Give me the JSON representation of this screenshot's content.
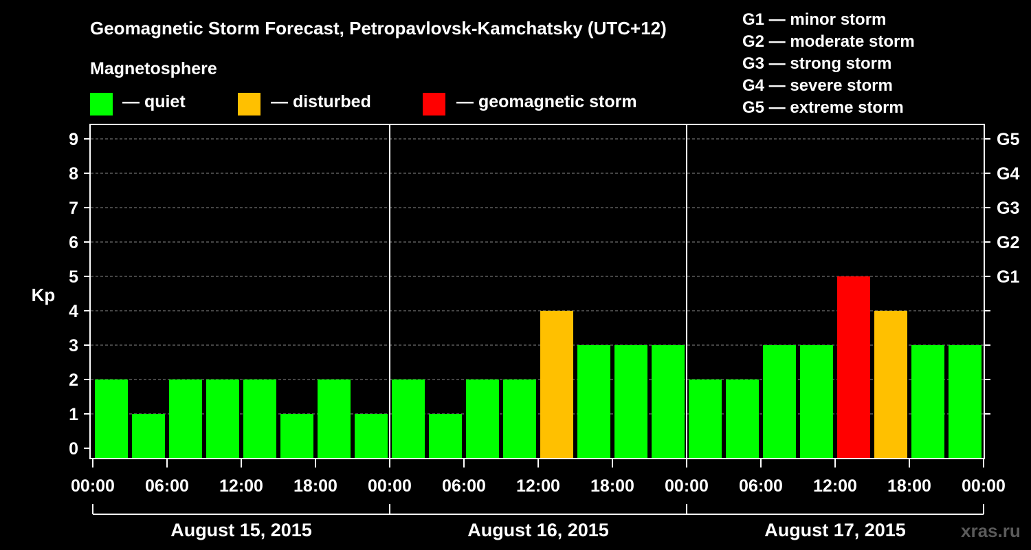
{
  "chart_data": {
    "type": "bar",
    "title": "Geomagnetic Storm Forecast, Petropavlovsk-Kamchatsky (UTC+12)",
    "ylabel": "Kp",
    "ylim": [
      0,
      9
    ],
    "yticks": [
      "0",
      "1",
      "2",
      "3",
      "4",
      "5",
      "6",
      "7",
      "8",
      "9"
    ],
    "right_axis_labels": [
      {
        "kp": 5,
        "label": "G1"
      },
      {
        "kp": 6,
        "label": "G2"
      },
      {
        "kp": 7,
        "label": "G3"
      },
      {
        "kp": 8,
        "label": "G4"
      },
      {
        "kp": 9,
        "label": "G5"
      }
    ],
    "xtick_labels": [
      "00:00",
      "06:00",
      "12:00",
      "18:00",
      "00:00",
      "06:00",
      "12:00",
      "18:00",
      "00:00",
      "06:00",
      "12:00",
      "18:00",
      "00:00"
    ],
    "days": [
      "August 15, 2015",
      "August 16, 2015",
      "August 17, 2015"
    ],
    "values": [
      2,
      1,
      2,
      2,
      2,
      1,
      2,
      1,
      2,
      1,
      2,
      2,
      4,
      3,
      3,
      3,
      2,
      2,
      3,
      3,
      5,
      4,
      3,
      3
    ],
    "status": [
      "quiet",
      "quiet",
      "quiet",
      "quiet",
      "quiet",
      "quiet",
      "quiet",
      "quiet",
      "quiet",
      "quiet",
      "quiet",
      "quiet",
      "disturbed",
      "quiet",
      "quiet",
      "quiet",
      "quiet",
      "quiet",
      "quiet",
      "quiet",
      "storm",
      "disturbed",
      "quiet",
      "quiet"
    ],
    "grid": "horizontal dashed",
    "colors": {
      "quiet": "#00ff00",
      "disturbed": "#ffc000",
      "storm": "#ff0000"
    }
  },
  "legend": {
    "title": "Magnetosphere",
    "items": [
      {
        "key": "quiet",
        "label": "— quiet",
        "color": "#00ff00"
      },
      {
        "key": "disturbed",
        "label": "— disturbed",
        "color": "#ffc000"
      },
      {
        "key": "storm",
        "label": "— geomagnetic storm",
        "color": "#ff0000"
      }
    ]
  },
  "storm_levels": [
    "G1 — minor storm",
    "G2 — moderate storm",
    "G3 — strong storm",
    "G4 — severe storm",
    "G5 — extreme storm"
  ],
  "watermark": "xras.ru"
}
